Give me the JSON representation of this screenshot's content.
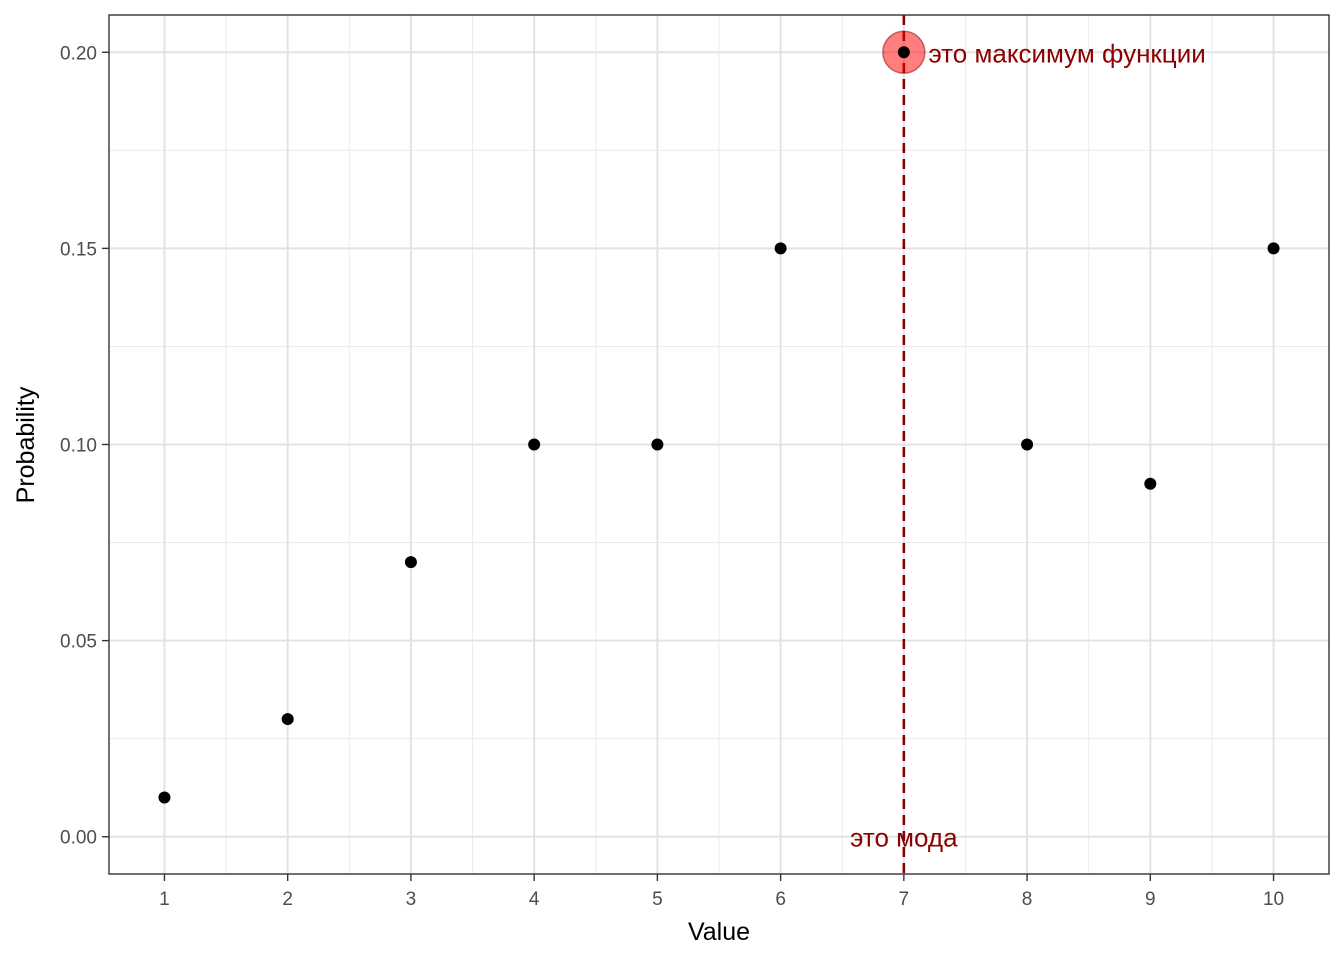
{
  "chart_data": {
    "type": "scatter",
    "title": "",
    "xlabel": "Value",
    "ylabel": "Probability",
    "x": [
      1,
      2,
      3,
      4,
      5,
      6,
      7,
      8,
      9,
      10
    ],
    "y": [
      0.01,
      0.03,
      0.07,
      0.1,
      0.1,
      0.15,
      0.2,
      0.1,
      0.09,
      0.15
    ],
    "xlim": [
      0.55,
      10.45
    ],
    "ylim": [
      -0.0095,
      0.2095
    ],
    "x_ticks": [
      "1",
      "2",
      "3",
      "4",
      "5",
      "6",
      "7",
      "8",
      "9",
      "10"
    ],
    "y_ticks": [
      "0.00",
      "0.05",
      "0.10",
      "0.15",
      "0.20"
    ],
    "y_tick_values": [
      0,
      0.05,
      0.1,
      0.15,
      0.2
    ],
    "grid": true,
    "legend": "none",
    "mode_line": {
      "x": 7,
      "style": "dashed",
      "color": "#8b0000"
    },
    "highlight_point": {
      "x": 7,
      "y": 0.2,
      "color": "#ff0000",
      "opacity": 0.5
    },
    "annotations": [
      {
        "name": "max-label",
        "text": "это максимум функции",
        "x": 7.2,
        "y": 0.2,
        "color": "#8b0000",
        "anchor": "start"
      },
      {
        "name": "mode-label",
        "text": "это мода",
        "x": 7,
        "y": 0.0,
        "color": "#8b0000",
        "anchor": "middle"
      }
    ]
  }
}
